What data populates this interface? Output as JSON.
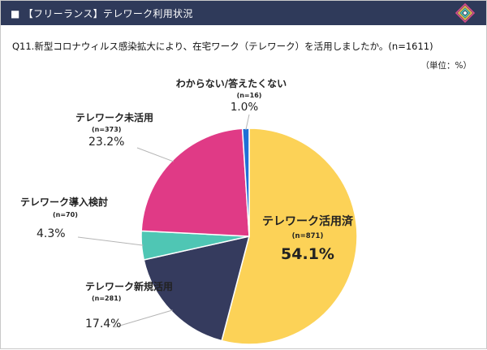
{
  "header": {
    "title": "■ 【フリーランス】テレワーク利用状況",
    "logo_icon": "layered-diamond-logo-icon"
  },
  "question": "Q11.新型コロナウィルス感染拡大により、在宅ワーク（テレワーク）を活用しましたか。(n=1611)",
  "unit": "（単位：%）",
  "chart_data": {
    "type": "pie",
    "title": "Q11.新型コロナウィルス感染拡大により、在宅ワーク（テレワーク）を活用しましたか。(n=1611)",
    "unit": "%",
    "start": "12 o'clock, clockwise",
    "slices": [
      {
        "name": "テレワーク活用済",
        "n": "(n=871)",
        "value": 54.1,
        "value_label": "54.1%",
        "color": "#fcd257"
      },
      {
        "name": "テレワーク新規活用",
        "n": "(n=281)",
        "value": 17.4,
        "value_label": "17.4%",
        "color": "#353b5e"
      },
      {
        "name": "テレワーク導入検討",
        "n": "(n=70)",
        "value": 4.3,
        "value_label": "4.3%",
        "color": "#4fc6b4"
      },
      {
        "name": "テレワーク未活用",
        "n": "(n=373)",
        "value": 23.2,
        "value_label": "23.2%",
        "color": "#e03a86"
      },
      {
        "name": "わからない/答えたくない",
        "n": "(n=16)",
        "value": 1.0,
        "value_label": "1.0%",
        "color": "#1f6fd6"
      }
    ]
  }
}
